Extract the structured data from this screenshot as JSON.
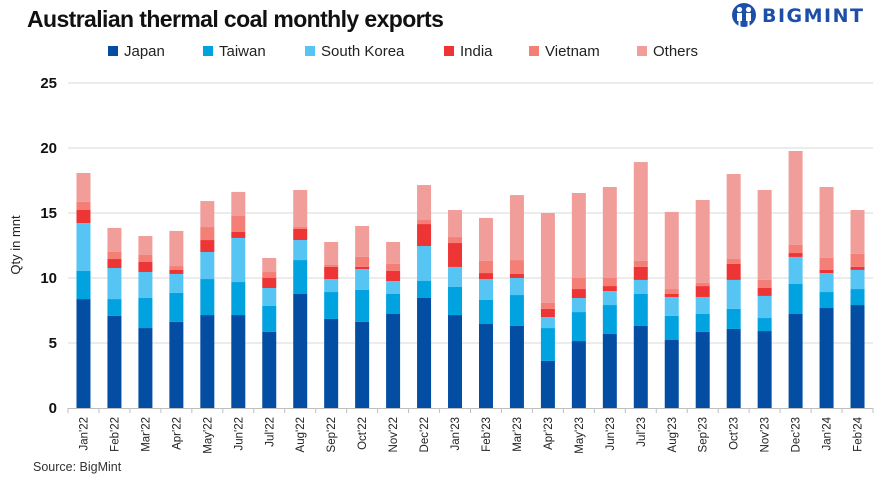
{
  "chart_data": {
    "type": "bar",
    "stacked": true,
    "title": "Australian thermal coal monthly exports",
    "xlabel": "",
    "ylabel": "Qty in mnt",
    "ylim": [
      0,
      25
    ],
    "yticks": [
      0,
      5,
      10,
      15,
      20,
      25
    ],
    "grid": true,
    "legend_position": "top",
    "categories": [
      "Jan'22",
      "Feb'22",
      "Mar'22",
      "Apr'22",
      "May'22",
      "Jun'22",
      "Jul'22",
      "Aug'22",
      "Sep'22",
      "Oct'22",
      "Nov'22",
      "Dec'22",
      "Jan'23",
      "Feb'23",
      "Mar'23",
      "Apr'23",
      "May'23",
      "Jun'23",
      "Jul'23",
      "Aug'23",
      "Sep'23",
      "Oct'23",
      "Nov'23",
      "Dec'23",
      "Jan'24",
      "Feb'24"
    ],
    "series": [
      {
        "name": "Japan",
        "color": "#034ea2",
        "values": [
          8.38,
          7.08,
          6.15,
          6.62,
          7.15,
          7.15,
          5.85,
          8.77,
          6.85,
          6.62,
          7.23,
          8.46,
          7.15,
          6.46,
          6.31,
          3.62,
          5.15,
          5.69,
          6.31,
          5.23,
          5.85,
          6.08,
          5.92,
          7.23,
          7.69,
          7.92
        ]
      },
      {
        "name": "Taiwan",
        "color": "#00a3e0",
        "values": [
          2.16,
          1.3,
          2.31,
          2.23,
          2.77,
          2.54,
          2.0,
          2.61,
          2.07,
          2.46,
          1.54,
          1.31,
          2.16,
          1.85,
          2.38,
          2.53,
          2.23,
          2.23,
          2.46,
          1.85,
          1.38,
          1.54,
          1.0,
          2.31,
          1.23,
          1.23
        ]
      },
      {
        "name": "South Korea",
        "color": "#56c5f3",
        "values": [
          3.69,
          2.39,
          2.0,
          1.46,
          2.08,
          3.39,
          1.38,
          1.54,
          1.0,
          1.61,
          1.0,
          2.69,
          1.54,
          1.61,
          1.31,
          0.85,
          1.08,
          1.08,
          1.08,
          1.46,
          1.31,
          2.23,
          1.7,
          2.08,
          1.46,
          1.47
        ]
      },
      {
        "name": "India",
        "color": "#ee3536",
        "values": [
          1.0,
          0.69,
          0.77,
          0.31,
          0.92,
          0.46,
          0.77,
          0.85,
          0.93,
          0.16,
          0.77,
          1.69,
          1.84,
          0.46,
          0.31,
          0.62,
          0.69,
          0.38,
          1.0,
          0.23,
          0.84,
          1.23,
          0.61,
          0.3,
          0.24,
          0.23
        ]
      },
      {
        "name": "Vietnam",
        "color": "#f47f77",
        "values": [
          0.62,
          0.54,
          0.54,
          0.3,
          1.0,
          1.23,
          0.46,
          0.15,
          0.18,
          0.77,
          0.54,
          0.31,
          0.46,
          0.93,
          1.07,
          0.46,
          0.85,
          0.62,
          0.46,
          0.38,
          0.24,
          0.38,
          0.62,
          0.62,
          0.92,
          1.0
        ]
      },
      {
        "name": "Others",
        "color": "#f19e9b",
        "values": [
          2.23,
          1.85,
          1.46,
          2.7,
          2.0,
          1.85,
          1.08,
          2.85,
          1.74,
          2.38,
          1.69,
          2.69,
          2.08,
          3.31,
          5.0,
          6.92,
          6.54,
          7.0,
          7.61,
          5.93,
          6.38,
          6.54,
          6.92,
          7.23,
          5.46,
          3.38
        ]
      }
    ],
    "source": "Source: BigMint"
  },
  "brand": {
    "name": "BIGMINT",
    "icon": "people-logo-icon",
    "color": "#1d4fa8"
  },
  "colors": {
    "gridline": "#d9d9d9",
    "axis": "#bfbfbf"
  }
}
